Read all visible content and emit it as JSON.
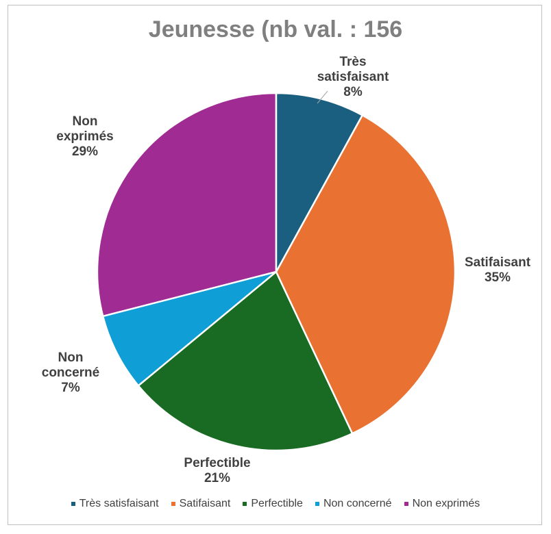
{
  "chart_data": {
    "type": "pie",
    "title": "Jeunesse (nb val. : 156",
    "categories": [
      "Très satisfaisant",
      "Satifaisant",
      "Perfectible",
      "Non concerné",
      "Non exprimés"
    ],
    "values": [
      8,
      35,
      21,
      7,
      29
    ],
    "value_labels": [
      "8%",
      "35%",
      "21%",
      "7%",
      "29%"
    ],
    "colors": [
      "#1a5e80",
      "#e97132",
      "#196b24",
      "#0f9ed5",
      "#a02b93"
    ],
    "legend": "bottom"
  }
}
